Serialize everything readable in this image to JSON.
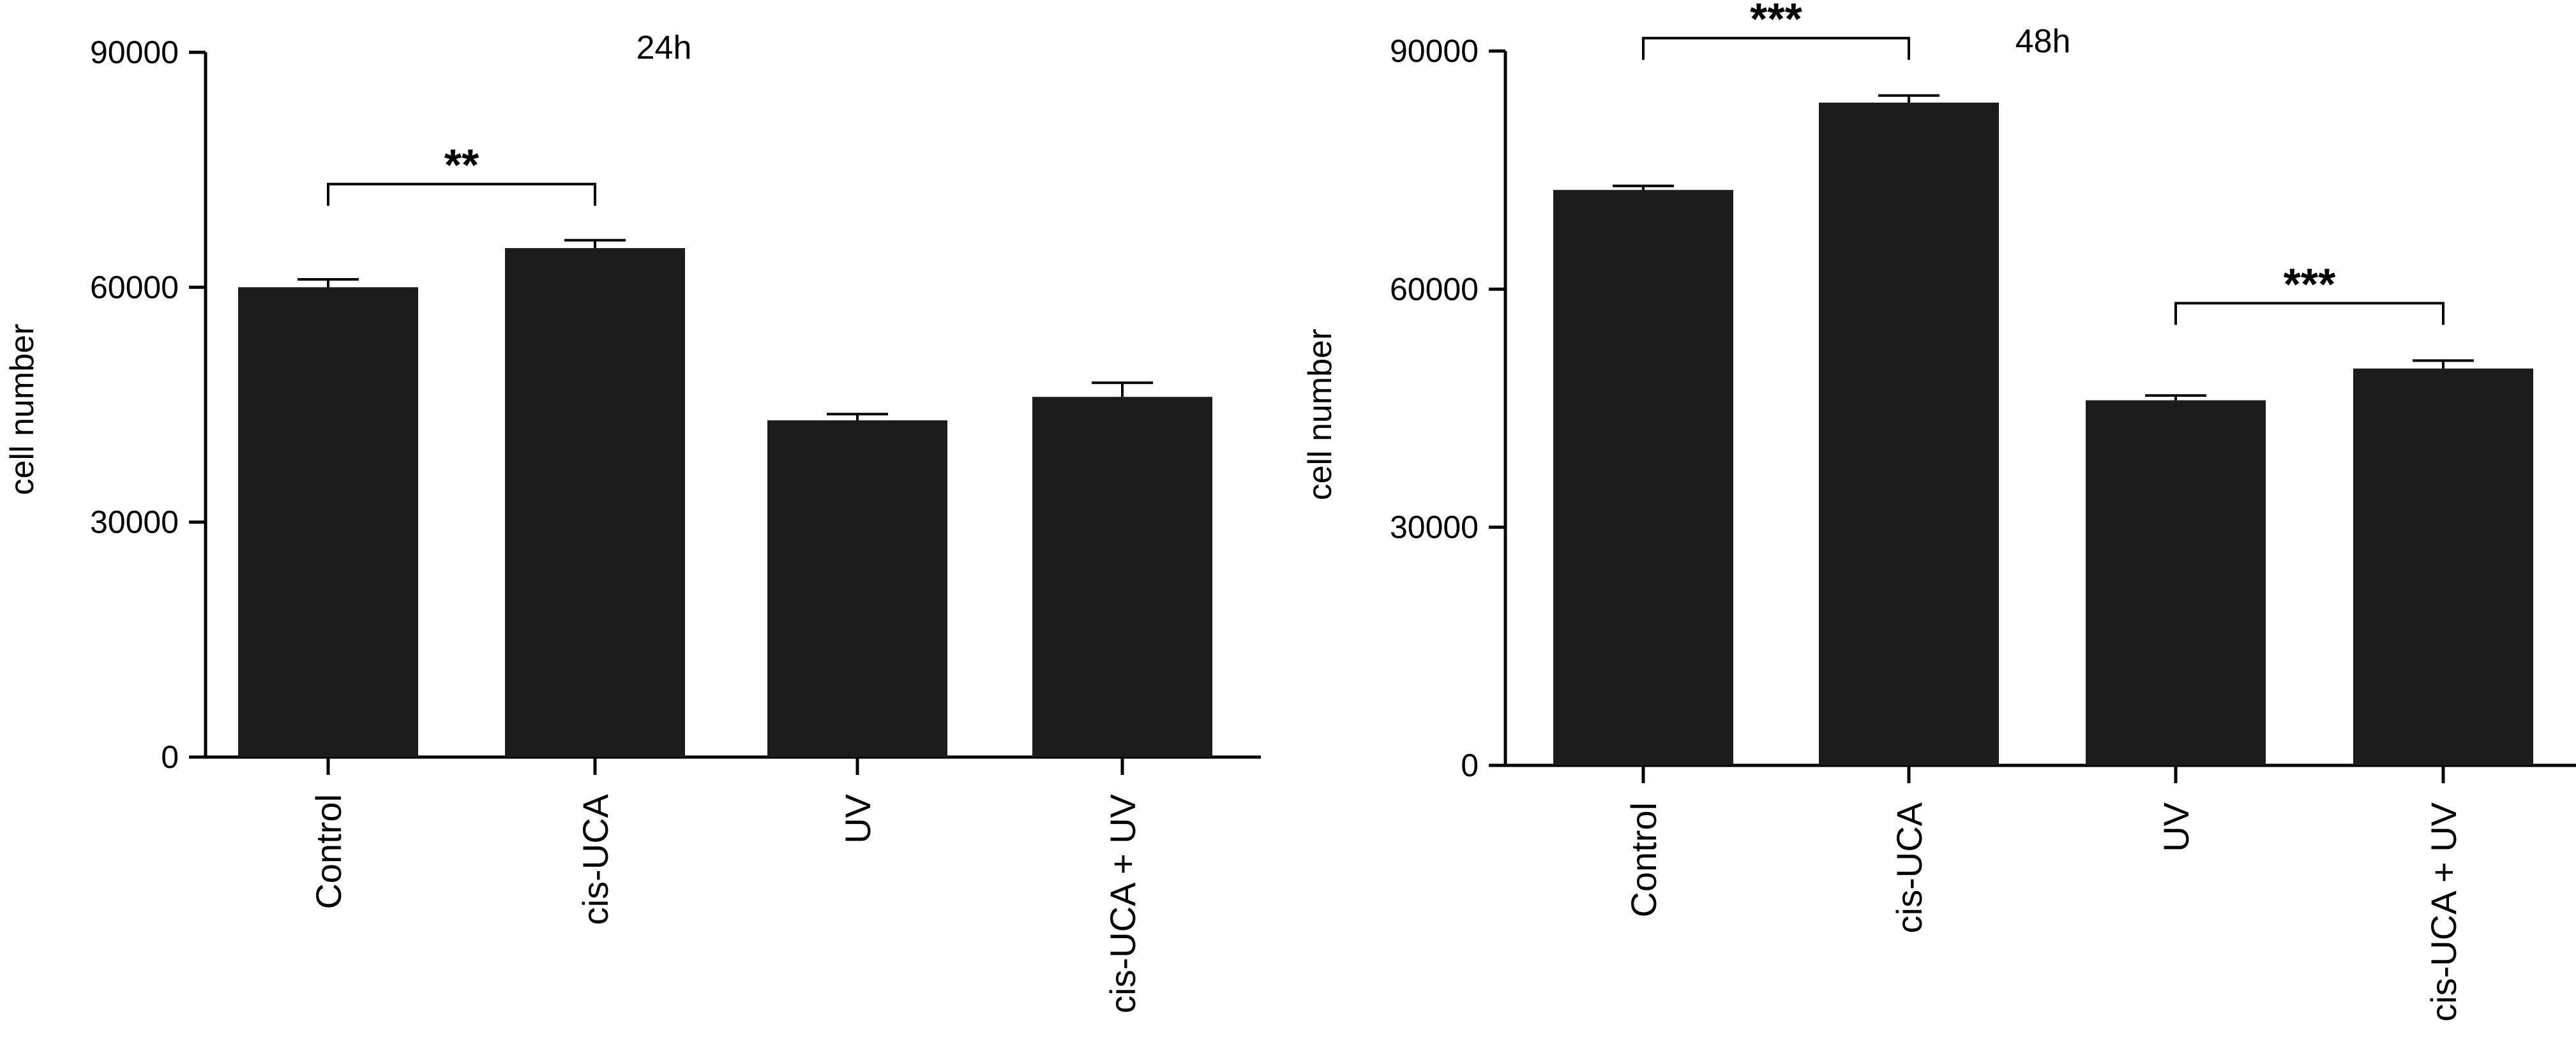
{
  "chart_data": [
    {
      "type": "bar",
      "title": "24h",
      "xlabel": "",
      "ylabel": "cell number",
      "categories": [
        "Control",
        "cis-UCA",
        "UV",
        "cis-UCA + UV"
      ],
      "values": [
        60000,
        65000,
        43000,
        46000
      ],
      "errors": [
        1000,
        1000,
        800,
        1800
      ],
      "ylim": [
        0,
        90000
      ],
      "yticks": [
        "0",
        "30000",
        "60000",
        "90000"
      ],
      "bar_color": "#1c1c1c",
      "grid": false,
      "significance": [
        {
          "from": 0,
          "to": 1,
          "label": "**"
        }
      ]
    },
    {
      "type": "bar",
      "title": "48h",
      "xlabel": "",
      "ylabel": "cell number",
      "categories": [
        "Control",
        "cis-UCA",
        "UV",
        "cis-UCA + UV"
      ],
      "values": [
        72500,
        83500,
        46000,
        50000
      ],
      "errors": [
        500,
        900,
        600,
        1000
      ],
      "ylim": [
        0,
        90000
      ],
      "yticks": [
        "0",
        "30000",
        "60000",
        "90000"
      ],
      "bar_color": "#1c1c1c",
      "grid": false,
      "significance": [
        {
          "from": 0,
          "to": 1,
          "label": "***"
        },
        {
          "from": 2,
          "to": 3,
          "label": "***"
        }
      ]
    }
  ]
}
